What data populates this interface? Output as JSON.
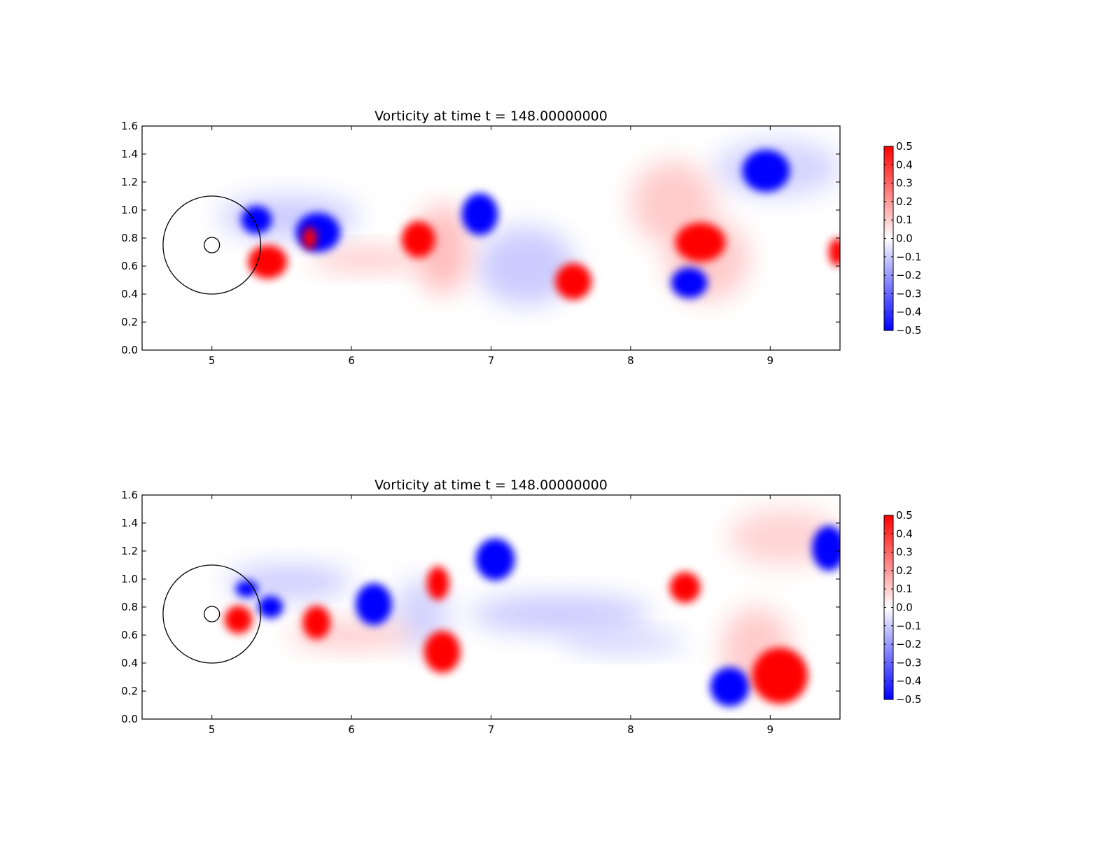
{
  "chart_data": [
    {
      "type": "heatmap",
      "title": "Vorticity at time t =   148.00000000",
      "xlim": [
        4.5,
        9.5
      ],
      "ylim": [
        0.0,
        1.6
      ],
      "xticks": [
        "5",
        "6",
        "7",
        "8",
        "9"
      ],
      "yticks": [
        "0.0",
        "0.2",
        "0.4",
        "0.6",
        "0.8",
        "1.0",
        "1.2",
        "1.4",
        "1.6"
      ],
      "colorbar": {
        "range": [
          -0.5,
          0.5
        ],
        "labels": [
          "0.5",
          "0.4",
          "0.3",
          "0.2",
          "0.1",
          "0.0",
          "−0.1",
          "−0.2",
          "−0.3",
          "−0.4",
          "−0.5"
        ],
        "colormap": [
          "#0000ff",
          "#ffffff",
          "#ff0000"
        ]
      },
      "circles": [
        {
          "cx": 5.0,
          "cy": 0.75,
          "r": 0.35
        },
        {
          "cx": 5.0,
          "cy": 0.75,
          "r": 0.055
        }
      ],
      "vortices": [
        {
          "x": 5.32,
          "y": 0.93,
          "value": -0.5,
          "rx": 0.11,
          "ry": 0.1
        },
        {
          "x": 5.76,
          "y": 0.84,
          "value": -0.5,
          "rx": 0.16,
          "ry": 0.14
        },
        {
          "x": 5.4,
          "y": 0.63,
          "value": 0.5,
          "rx": 0.14,
          "ry": 0.12
        },
        {
          "x": 5.7,
          "y": 0.8,
          "value": 0.5,
          "rx": 0.05,
          "ry": 0.08
        },
        {
          "x": 6.48,
          "y": 0.79,
          "value": 0.5,
          "rx": 0.12,
          "ry": 0.13
        },
        {
          "x": 6.92,
          "y": 0.97,
          "value": -0.5,
          "rx": 0.13,
          "ry": 0.15
        },
        {
          "x": 7.59,
          "y": 0.49,
          "value": 0.5,
          "rx": 0.13,
          "ry": 0.13
        },
        {
          "x": 8.5,
          "y": 0.77,
          "value": 0.5,
          "rx": 0.18,
          "ry": 0.14
        },
        {
          "x": 8.42,
          "y": 0.48,
          "value": -0.5,
          "rx": 0.13,
          "ry": 0.11
        },
        {
          "x": 8.97,
          "y": 1.28,
          "value": -0.5,
          "rx": 0.17,
          "ry": 0.15
        },
        {
          "x": 9.48,
          "y": 0.7,
          "value": 0.5,
          "rx": 0.06,
          "ry": 0.1
        },
        {
          "x": 6.1,
          "y": 0.65,
          "value": 0.12,
          "rx": 0.4,
          "ry": 0.09
        },
        {
          "x": 6.65,
          "y": 0.72,
          "value": 0.15,
          "rx": 0.2,
          "ry": 0.32
        },
        {
          "x": 7.25,
          "y": 0.6,
          "value": -0.12,
          "rx": 0.35,
          "ry": 0.28
        },
        {
          "x": 8.3,
          "y": 1.05,
          "value": 0.12,
          "rx": 0.3,
          "ry": 0.3
        },
        {
          "x": 8.55,
          "y": 0.65,
          "value": 0.12,
          "rx": 0.3,
          "ry": 0.3
        },
        {
          "x": 9.05,
          "y": 1.3,
          "value": -0.1,
          "rx": 0.45,
          "ry": 0.2
        },
        {
          "x": 5.55,
          "y": 0.95,
          "value": -0.12,
          "rx": 0.5,
          "ry": 0.15
        }
      ]
    },
    {
      "type": "heatmap",
      "title": "Vorticity at time t =   148.00000000",
      "xlim": [
        4.5,
        9.5
      ],
      "ylim": [
        0.0,
        1.6
      ],
      "xticks": [
        "5",
        "6",
        "7",
        "8",
        "9"
      ],
      "yticks": [
        "0.0",
        "0.2",
        "0.4",
        "0.6",
        "0.8",
        "1.0",
        "1.2",
        "1.4",
        "1.6"
      ],
      "colorbar": {
        "range": [
          -0.5,
          0.5
        ],
        "labels": [
          "0.5",
          "0.4",
          "0.3",
          "0.2",
          "0.1",
          "0.0",
          "−0.1",
          "−0.2",
          "−0.3",
          "−0.4",
          "−0.5"
        ],
        "colormap": [
          "#0000ff",
          "#ffffff",
          "#ff0000"
        ]
      },
      "circles": [
        {
          "cx": 5.0,
          "cy": 0.75,
          "r": 0.35
        },
        {
          "cx": 5.0,
          "cy": 0.75,
          "r": 0.055
        }
      ],
      "vortices": [
        {
          "x": 5.42,
          "y": 0.8,
          "value": -0.5,
          "rx": 0.09,
          "ry": 0.08
        },
        {
          "x": 5.19,
          "y": 0.71,
          "value": 0.5,
          "rx": 0.1,
          "ry": 0.1
        },
        {
          "x": 5.25,
          "y": 0.93,
          "value": -0.5,
          "rx": 0.08,
          "ry": 0.06
        },
        {
          "x": 5.75,
          "y": 0.69,
          "value": 0.5,
          "rx": 0.1,
          "ry": 0.12
        },
        {
          "x": 6.16,
          "y": 0.82,
          "value": -0.5,
          "rx": 0.13,
          "ry": 0.15
        },
        {
          "x": 6.62,
          "y": 0.97,
          "value": 0.5,
          "rx": 0.08,
          "ry": 0.12
        },
        {
          "x": 6.65,
          "y": 0.48,
          "value": 0.5,
          "rx": 0.13,
          "ry": 0.15
        },
        {
          "x": 7.03,
          "y": 1.14,
          "value": -0.5,
          "rx": 0.14,
          "ry": 0.15
        },
        {
          "x": 8.39,
          "y": 0.94,
          "value": 0.5,
          "rx": 0.11,
          "ry": 0.11
        },
        {
          "x": 8.71,
          "y": 0.23,
          "value": -0.5,
          "rx": 0.14,
          "ry": 0.14
        },
        {
          "x": 9.07,
          "y": 0.31,
          "value": 0.5,
          "rx": 0.2,
          "ry": 0.2
        },
        {
          "x": 9.42,
          "y": 1.22,
          "value": -0.5,
          "rx": 0.12,
          "ry": 0.16
        },
        {
          "x": 7.5,
          "y": 0.75,
          "value": -0.12,
          "rx": 0.65,
          "ry": 0.14
        },
        {
          "x": 7.95,
          "y": 0.55,
          "value": -0.1,
          "rx": 0.45,
          "ry": 0.08
        },
        {
          "x": 6.0,
          "y": 0.6,
          "value": 0.12,
          "rx": 0.45,
          "ry": 0.1
        },
        {
          "x": 6.5,
          "y": 0.75,
          "value": -0.1,
          "rx": 0.2,
          "ry": 0.25
        },
        {
          "x": 8.9,
          "y": 0.5,
          "value": 0.12,
          "rx": 0.25,
          "ry": 0.3
        },
        {
          "x": 9.1,
          "y": 1.3,
          "value": 0.1,
          "rx": 0.4,
          "ry": 0.2
        },
        {
          "x": 5.55,
          "y": 0.98,
          "value": -0.12,
          "rx": 0.45,
          "ry": 0.12
        }
      ]
    }
  ]
}
